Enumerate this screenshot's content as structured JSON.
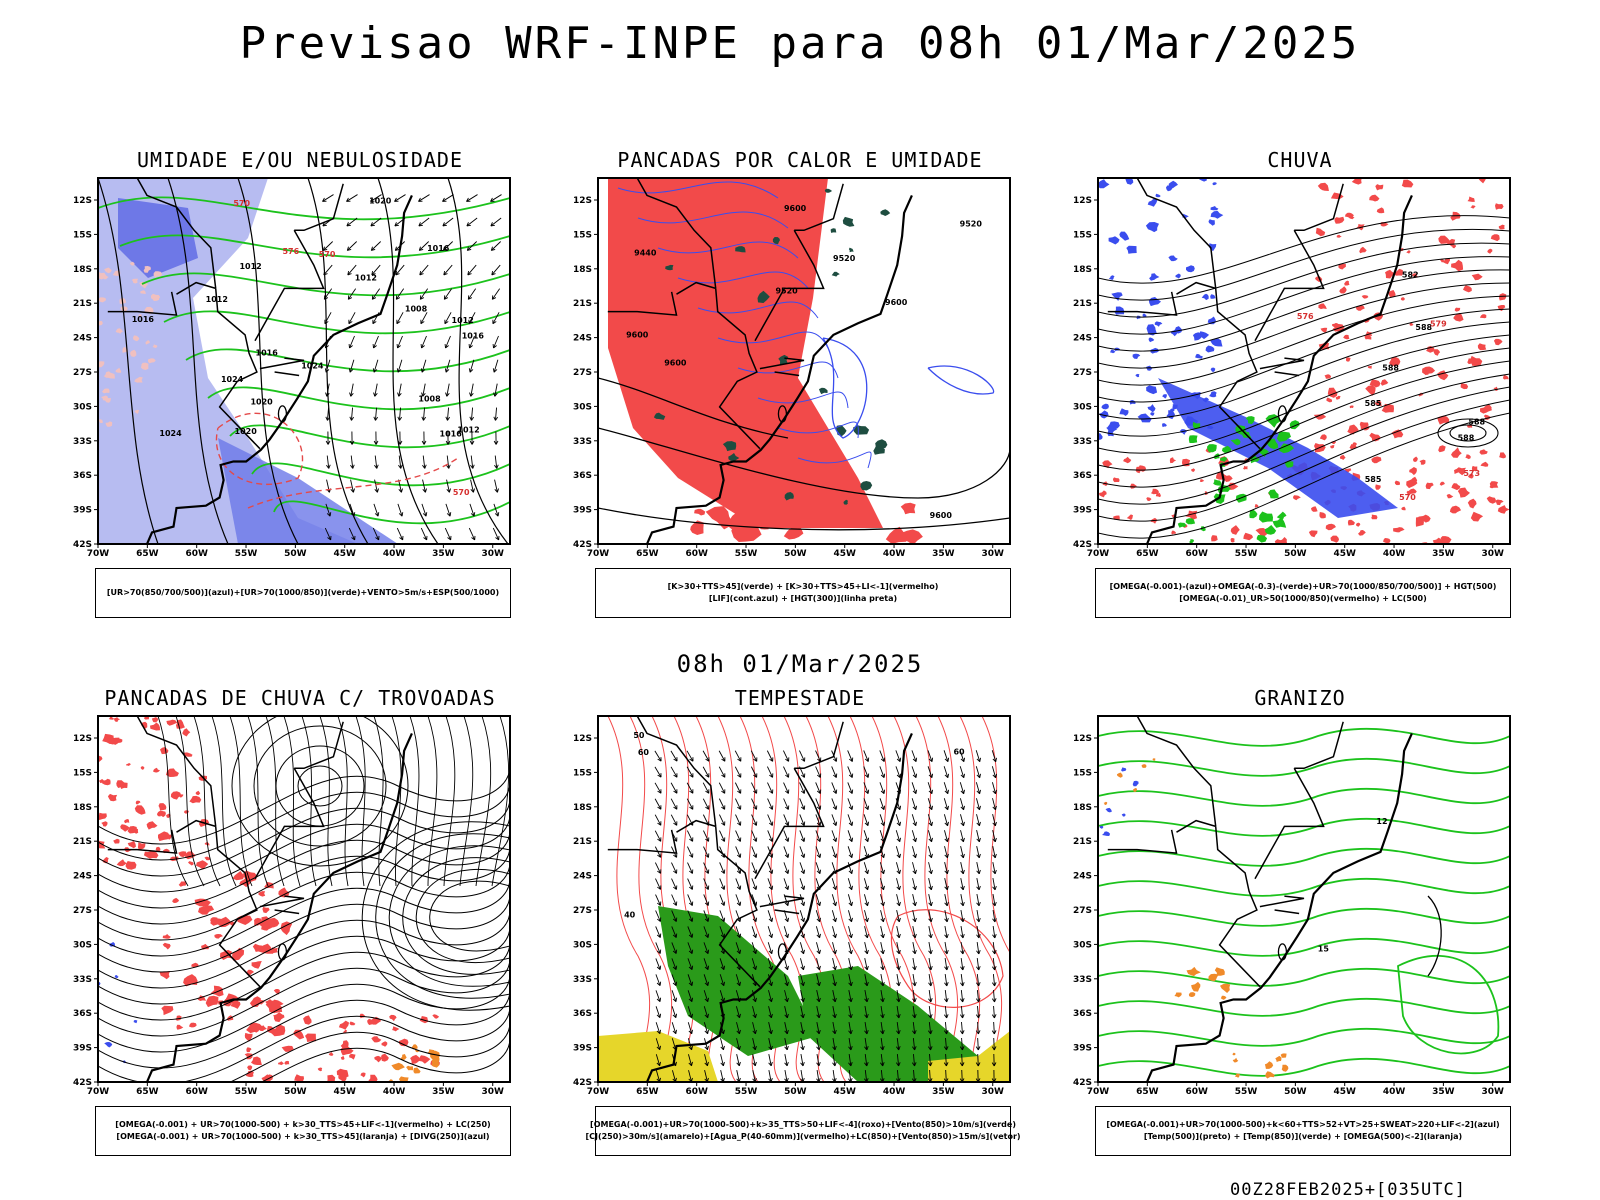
{
  "header": {
    "title": "Previsao WRF-INPE  para 08h 01/Mar/2025"
  },
  "valid_time": "08h 01/Mar/2025",
  "footer": {
    "run": "00Z28FEB2025+[035UTC]"
  },
  "colors": {
    "frame": "#000000",
    "red": "#f24a4a",
    "blue": "#3a4dee",
    "green": "#1cc21c",
    "darkgreen": "#1e4d40",
    "lavender": "#aab0ee",
    "orange": "#f08a2a",
    "yellow": "#e6d62a"
  },
  "chart_data": [
    {
      "type": "map",
      "title": "UMIDADE E/OU NEBULOSIDADE",
      "legend": [
        "[UR>70(850/700/500)](azul)+[UR>70(1000/850)](verde)+VENTO>5m/s+ESP(500/1000)"
      ],
      "x_ticks": [
        "70W",
        "65W",
        "60W",
        "55W",
        "50W",
        "45W",
        "40W",
        "35W",
        "30W"
      ],
      "y_ticks": [
        "12S",
        "15S",
        "18S",
        "21S",
        "24S",
        "27S",
        "30S",
        "33S",
        "36S",
        "39S",
        "42S"
      ],
      "contour_labels": [
        "1012",
        "1012",
        "1012",
        "1016",
        "1016",
        "1012",
        "1020",
        "1020",
        "1016",
        "1016",
        "1012",
        "1008",
        "1008",
        "1020",
        "1024",
        "1024",
        "1024",
        "1016",
        "570",
        "576",
        "570",
        "570"
      ]
    },
    {
      "type": "map",
      "title": "PANCADAS POR CALOR E UMIDADE",
      "legend": [
        "[K>30+TTS>45](verde) + [K>30+TTS>45+LI<-1](vermelho)",
        "[LIF](cont.azul) + [HGT(300)](linha preta)"
      ],
      "x_ticks": [
        "70W",
        "65W",
        "60W",
        "55W",
        "50W",
        "45W",
        "40W",
        "35W",
        "30W"
      ],
      "y_ticks": [
        "12S",
        "15S",
        "18S",
        "21S",
        "24S",
        "27S",
        "30S",
        "33S",
        "36S",
        "39S",
        "42S"
      ],
      "contour_labels": [
        "9600",
        "9600",
        "9600",
        "9520",
        "9440",
        "9600",
        "9600",
        "9520",
        "9520"
      ]
    },
    {
      "type": "map",
      "title": "CHUVA",
      "legend": [
        "[OMEGA(-0.001)-(azul)+OMEGA(-0.3)-(verde)+UR>70(1000/850/700/500)] + HGT(500)",
        "[OMEGA(-0.01)_UR>50(1000/850)(vermelho) + LC(500)"
      ],
      "x_ticks": [
        "70W",
        "65W",
        "60W",
        "55W",
        "50W",
        "45W",
        "40W",
        "35W",
        "30W"
      ],
      "y_ticks": [
        "12S",
        "15S",
        "18S",
        "21S",
        "24S",
        "27S",
        "30S",
        "33S",
        "36S",
        "39S",
        "42S"
      ],
      "contour_labels": [
        "585",
        "588",
        "588",
        "588",
        "585",
        "582",
        "579",
        "576",
        "573",
        "570",
        "588"
      ]
    },
    {
      "type": "map",
      "title": "PANCADAS DE CHUVA C/ TROVOADAS",
      "legend": [
        "[OMEGA(-0.001) + UR>70(1000-500) + k>30_TTS>45+LIF<-1](vermelho) + LC(250)",
        "[OMEGA(-0.001) + UR>70(1000-500) + k>30_TTS>45](laranja) + [DIVG(250)](azul)"
      ],
      "x_ticks": [
        "70W",
        "65W",
        "60W",
        "55W",
        "50W",
        "45W",
        "40W",
        "35W",
        "30W"
      ],
      "y_ticks": [
        "12S",
        "15S",
        "18S",
        "21S",
        "24S",
        "27S",
        "30S",
        "33S",
        "36S",
        "39S",
        "42S"
      ],
      "contour_labels": []
    },
    {
      "type": "map",
      "title": "TEMPESTADE",
      "legend": [
        "[OMEGA(-0.001)+UR>70(1000-500)+k>35_TTS>50+LIF<-4](roxo)+[Vento(850)>10m/s](verde)",
        "[CJ(250)>30m/s](amarelo)+[Agua_P(40-60mm)](vermelho)+LC(850)+[Vento(850)>15m/s](vetor)"
      ],
      "x_ticks": [
        "70W",
        "65W",
        "60W",
        "55W",
        "50W",
        "45W",
        "40W",
        "35W",
        "30W"
      ],
      "y_ticks": [
        "12S",
        "15S",
        "18S",
        "21S",
        "24S",
        "27S",
        "30S",
        "33S",
        "36S",
        "39S",
        "42S"
      ],
      "contour_labels": [
        "60",
        "50",
        "40",
        "60"
      ]
    },
    {
      "type": "map",
      "title": "GRANIZO",
      "legend": [
        "[OMEGA(-0.001)+UR>70(1000-500)+k<60+TTS>52+VT>25+SWEAT>220+LIF<-2](azul)",
        "[Temp(500)](preto) + [Temp(850)](verde) + [OMEGA(500)<-2](laranja)"
      ],
      "x_ticks": [
        "70W",
        "65W",
        "60W",
        "55W",
        "50W",
        "45W",
        "40W",
        "35W",
        "30W"
      ],
      "y_ticks": [
        "12S",
        "15S",
        "18S",
        "21S",
        "24S",
        "27S",
        "30S",
        "33S",
        "36S",
        "39S",
        "42S"
      ],
      "contour_labels": [
        "12",
        "15"
      ]
    }
  ]
}
